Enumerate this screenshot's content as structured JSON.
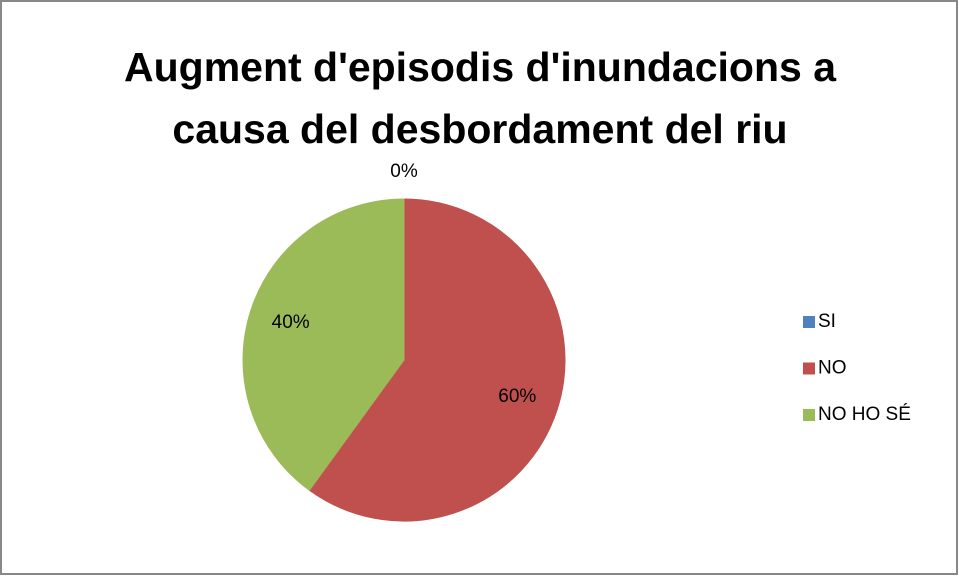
{
  "chart_data": {
    "type": "pie",
    "title": "Augment d'episodis d'inundacions a causa del desbordament del riu",
    "categories": [
      "SI",
      "NO",
      "NO HO SÉ"
    ],
    "values": [
      0,
      60,
      40
    ],
    "value_labels": [
      "0%",
      "60%",
      "40%"
    ],
    "colors": [
      "#4f81bd",
      "#c0504d",
      "#9bbb59"
    ],
    "legend": "right"
  }
}
